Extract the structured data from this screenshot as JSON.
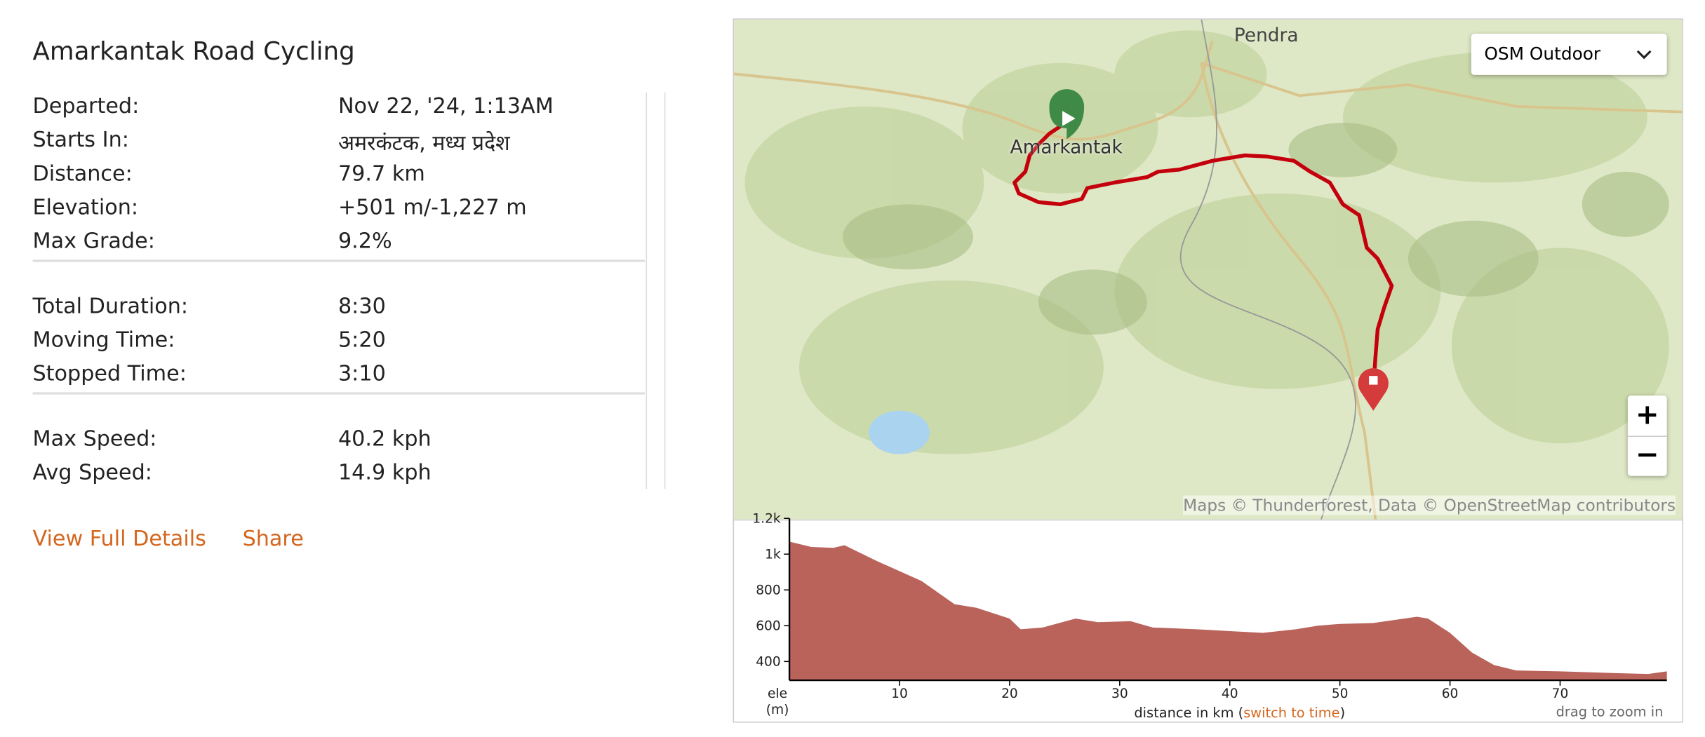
{
  "title": "Amarkantak Road Cycling",
  "stats": [
    [
      {
        "label": "Departed:",
        "value": "Nov 22, '24, 1:13AM"
      },
      {
        "label": "Starts In:",
        "value": "अमरकंटक, मध्य प्रदेश"
      },
      {
        "label": "Distance:",
        "value": "79.7 km"
      },
      {
        "label": "Elevation:",
        "value": "+501 m/-1,227 m"
      },
      {
        "label": "Max Grade:",
        "value": "9.2%"
      }
    ],
    [
      {
        "label": "Total Duration:",
        "value": "8:30"
      },
      {
        "label": "Moving Time:",
        "value": "5:20"
      },
      {
        "label": "Stopped Time:",
        "value": "3:10"
      }
    ],
    [
      {
        "label": "Max Speed:",
        "value": "40.2 kph"
      },
      {
        "label": "Avg Speed:",
        "value": "14.9 kph"
      }
    ]
  ],
  "actions": [
    "View Full Details",
    "Share"
  ],
  "map": {
    "layer": "OSM Outdoor",
    "places": [
      "Pendra",
      "Amarkantak"
    ],
    "zoom_in": "+",
    "zoom_out": "−",
    "attribution": "Maps © Thunderforest, Data © OpenStreetMap contributors"
  },
  "chart_data": {
    "type": "area",
    "color": "#b9635b",
    "x": [
      0,
      2,
      4,
      5,
      8,
      12,
      15,
      17,
      20,
      21,
      23,
      26,
      28,
      31,
      33,
      37,
      40,
      43,
      46,
      48,
      50,
      53,
      57,
      58,
      60,
      62,
      64,
      66,
      70,
      75,
      78,
      79.7
    ],
    "values": [
      1070,
      1040,
      1035,
      1050,
      960,
      850,
      720,
      700,
      640,
      580,
      590,
      640,
      620,
      625,
      590,
      580,
      570,
      560,
      580,
      600,
      610,
      615,
      650,
      640,
      560,
      450,
      380,
      350,
      345,
      335,
      330,
      345
    ],
    "xlim": [
      0,
      79.7
    ],
    "ylim": [
      295,
      1200
    ],
    "xticks": [
      10,
      20,
      30,
      40,
      50,
      60,
      70
    ],
    "yticks": [
      {
        "value": 1200,
        "label": "1.2k"
      },
      {
        "value": 1000,
        "label": "1k"
      },
      800,
      600,
      400
    ],
    "y_label": "ele (m)",
    "x_label": [
      "distance in km (",
      "switch to time",
      ")"
    ],
    "hint": "drag to zoom in"
  }
}
